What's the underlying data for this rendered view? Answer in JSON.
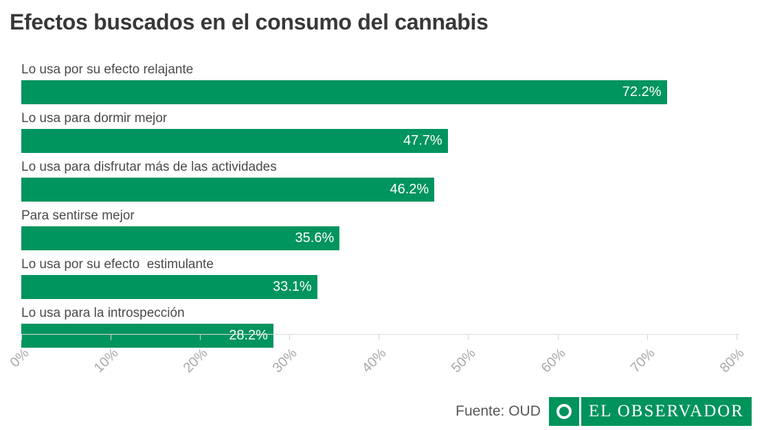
{
  "title": "Efectos buscados en el consumo del cannabis",
  "chart_data": {
    "type": "bar",
    "orientation": "horizontal",
    "title": "Efectos buscados en el consumo del cannabis",
    "categories": [
      "Lo usa por su efecto relajante",
      "Lo usa para dormir mejor",
      "Lo usa para disfrutar más de las actividades",
      "Para sentirse mejor",
      "Lo usa por su efecto  estimulante",
      "Lo usa para la introspección"
    ],
    "values": [
      72.2,
      47.7,
      46.2,
      35.6,
      33.1,
      28.2
    ],
    "value_labels": [
      "72.2%",
      "47.7%",
      "46.2%",
      "35.6%",
      "33.1%",
      "28.2%"
    ],
    "xlabel": "",
    "ylabel": "",
    "xlim": [
      0,
      80
    ],
    "x_ticks": [
      "0%",
      "10%",
      "20%",
      "30%",
      "40%",
      "50%",
      "60%",
      "70%",
      "80%"
    ],
    "tick_rotation_deg": -45,
    "grid": false,
    "legend": false,
    "bar_color": "#00945e",
    "value_label_color": "#ffffff",
    "value_label_position": "inside-end"
  },
  "footer": {
    "source_label": "Fuente: OUD",
    "logo": {
      "text": "EL OBSERVADOR",
      "icon": "ring-icon",
      "background_color": "#00935b",
      "text_color": "#ffffff"
    }
  }
}
